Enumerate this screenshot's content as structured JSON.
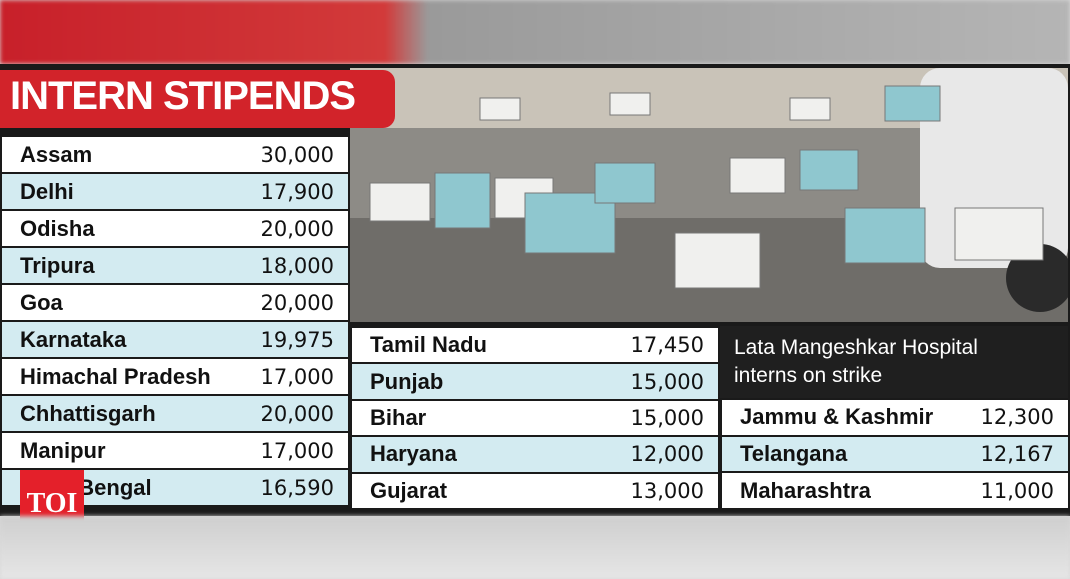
{
  "header": {
    "title": "INTERN STIPENDS"
  },
  "caption": "Lata Mangeshkar Hospital interns on strike",
  "logo": "TOI",
  "tables": [
    {
      "rows": [
        [
          "Assam",
          "30,000"
        ],
        [
          "Delhi",
          "17,900"
        ],
        [
          "Odisha",
          "20,000"
        ],
        [
          "Tripura",
          "18,000"
        ],
        [
          "Goa",
          "20,000"
        ],
        [
          "Karnataka",
          "19,975"
        ],
        [
          "Himachal Pradesh",
          "17,000"
        ],
        [
          "Chhattisgarh",
          "20,000"
        ],
        [
          "Manipur",
          "17,000"
        ],
        [
          "West Bengal",
          "16,590"
        ]
      ]
    },
    {
      "rows": [
        [
          "Tamil Nadu",
          "17,450"
        ],
        [
          "Punjab",
          "15,000"
        ],
        [
          "Bihar",
          "15,000"
        ],
        [
          "Haryana",
          "12,000"
        ],
        [
          "Gujarat",
          "13,000"
        ]
      ]
    },
    {
      "rows": [
        [
          "Jammu & Kashmir",
          "12,300"
        ],
        [
          "Telangana",
          "12,167"
        ],
        [
          "Maharashtra",
          "11,000"
        ]
      ]
    }
  ]
}
